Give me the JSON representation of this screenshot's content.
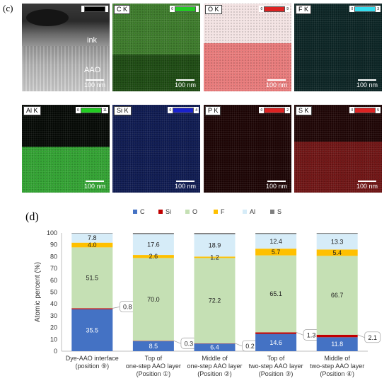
{
  "panel_c": {
    "label": "(c)",
    "tiles": [
      {
        "label": "",
        "scale_max": "",
        "bar_color": "#000000",
        "scale_text": "100 nm",
        "kind": "stem",
        "ink": "ink",
        "aao": "AAO"
      },
      {
        "label": "C K",
        "scale_min": "0",
        "scale_max": "",
        "bar_color": "#22cc22",
        "scale_text": "100 nm",
        "kind": "map",
        "top": "#3c7a2a",
        "bottom": "#1d4a12",
        "split": 0.58
      },
      {
        "label": "O K",
        "scale_min": "0",
        "scale_max": "9",
        "bar_color": "#dd2222",
        "scale_text": "100 nm",
        "kind": "map",
        "top": "#f3e3e3",
        "bottom": "#e87a7a",
        "split": 0.45
      },
      {
        "label": "F K",
        "scale_min": "0",
        "scale_max": "3",
        "bar_color": "#33ddee",
        "scale_text": "100 nm",
        "kind": "map",
        "top": "#0b2424",
        "bottom": "#0b2424",
        "split": 0.5
      },
      {
        "label": "Al K",
        "scale_min": "0",
        "scale_max": "11",
        "bar_color": "#22cc22",
        "scale_text": "100 nm",
        "kind": "map",
        "top": "#050905",
        "bottom": "#32a232",
        "split": 0.48
      },
      {
        "label": "Si K",
        "scale_min": "0",
        "scale_max": "4",
        "bar_color": "#1a22cc",
        "scale_text": "100 nm",
        "kind": "map",
        "top": "#0e1a50",
        "bottom": "#0e1a50",
        "split": 0.5
      },
      {
        "label": "P K",
        "scale_min": "0",
        "scale_max": "2",
        "bar_color": "#dd2222",
        "scale_text": "100 nm",
        "kind": "map",
        "top": "#1c0404",
        "bottom": "#1c0404",
        "split": 0.5
      },
      {
        "label": "S K",
        "scale_min": "0",
        "scale_max": "5",
        "bar_color": "#dd2222",
        "scale_text": "100 nm",
        "kind": "map",
        "top": "#1e0505",
        "bottom": "#6e1414",
        "split": 0.42
      }
    ]
  },
  "panel_d": {
    "label": "(d)"
  },
  "chart_data": {
    "type": "bar",
    "stacked": true,
    "ylabel": "Atomic percent (%)",
    "ylim": [
      0,
      100
    ],
    "yticks": [
      0,
      10,
      20,
      30,
      40,
      50,
      60,
      70,
      80,
      90,
      100
    ],
    "grid": false,
    "legend_position": "top",
    "categories": [
      [
        "Dye-AAO interface",
        "(position ⑨)"
      ],
      [
        "Top of",
        "one-step AAO layer",
        "(Position ①)"
      ],
      [
        "Middle of",
        "one-step AAO layer",
        "(Position ②)"
      ],
      [
        "Top of",
        "two-step AAO layer",
        "(Position ③)"
      ],
      [
        "Middle of",
        "two-step AAO layer",
        "(Position ④)"
      ]
    ],
    "series": [
      {
        "name": "C",
        "color": "#4472c4",
        "values": [
          35.5,
          8.5,
          6.4,
          14.6,
          11.8
        ]
      },
      {
        "name": "Si",
        "color": "#c00000",
        "values": [
          0.8,
          0.3,
          0.2,
          1.3,
          2.1
        ]
      },
      {
        "name": "O",
        "color": "#c5e0b4",
        "values": [
          51.5,
          70.0,
          72.2,
          65.1,
          66.7
        ]
      },
      {
        "name": "F",
        "color": "#ffc000",
        "values": [
          4.0,
          2.6,
          1.2,
          5.7,
          5.4
        ]
      },
      {
        "name": "Al",
        "color": "#d6ecf8",
        "values": [
          7.8,
          17.6,
          18.9,
          12.4,
          13.3
        ]
      },
      {
        "name": "S",
        "color": "#7f7f7f",
        "values": [
          0.4,
          1.0,
          1.1,
          0.9,
          0.7
        ]
      }
    ],
    "labels": {
      "C": [
        "35.5",
        "8.5",
        "6.4",
        "14.6",
        "11.8"
      ],
      "O": [
        "51.5",
        "70.0",
        "72.2",
        "65.1",
        "66.7"
      ],
      "F": [
        "4.0",
        "2.6",
        "1.2",
        "5.7",
        "5.4"
      ],
      "Al": [
        "7.8",
        "17.6",
        "18.9",
        "12.4",
        "13.3"
      ],
      "Si_callouts": [
        "0.8",
        "0.3",
        "0.2",
        "1.3",
        "2.1"
      ]
    }
  }
}
